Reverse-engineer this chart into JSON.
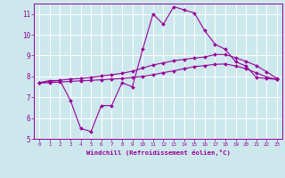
{
  "xlabel": "Windchill (Refroidissement éolien,°C)",
  "background_color": "#cce8ed",
  "grid_color": "#ffffff",
  "line_color": "#990099",
  "spine_color": "#7700aa",
  "xlim": [
    -0.5,
    23.5
  ],
  "ylim": [
    5,
    11.5
  ],
  "yticks": [
    5,
    6,
    7,
    8,
    9,
    10,
    11
  ],
  "xticks": [
    0,
    1,
    2,
    3,
    4,
    5,
    6,
    7,
    8,
    9,
    10,
    11,
    12,
    13,
    14,
    15,
    16,
    17,
    18,
    19,
    20,
    21,
    22,
    23
  ],
  "line1_x": [
    0,
    1,
    2,
    3,
    4,
    5,
    6,
    7,
    8,
    9,
    10,
    11,
    12,
    13,
    14,
    15,
    16,
    17,
    18,
    19,
    20,
    21,
    22,
    23
  ],
  "line1_y": [
    7.7,
    7.8,
    7.8,
    6.85,
    5.5,
    5.35,
    6.6,
    6.6,
    7.7,
    7.5,
    9.3,
    11.0,
    10.5,
    11.35,
    11.2,
    11.05,
    10.2,
    9.55,
    9.3,
    8.7,
    8.5,
    7.95,
    7.9,
    7.85
  ],
  "line2_x": [
    0,
    1,
    2,
    3,
    4,
    5,
    6,
    7,
    8,
    9,
    10,
    11,
    12,
    13,
    14,
    15,
    16,
    17,
    18,
    19,
    20,
    21,
    22,
    23
  ],
  "line2_y": [
    7.7,
    7.75,
    7.82,
    7.87,
    7.9,
    7.95,
    8.02,
    8.08,
    8.15,
    8.25,
    8.4,
    8.55,
    8.65,
    8.75,
    8.82,
    8.88,
    8.93,
    9.05,
    9.05,
    8.9,
    8.72,
    8.52,
    8.22,
    7.9
  ],
  "line3_x": [
    0,
    1,
    2,
    3,
    4,
    5,
    6,
    7,
    8,
    9,
    10,
    11,
    12,
    13,
    14,
    15,
    16,
    17,
    18,
    19,
    20,
    21,
    22,
    23
  ],
  "line3_y": [
    7.68,
    7.7,
    7.73,
    7.76,
    7.79,
    7.81,
    7.84,
    7.87,
    7.9,
    7.95,
    8.0,
    8.08,
    8.18,
    8.27,
    8.37,
    8.47,
    8.52,
    8.58,
    8.6,
    8.5,
    8.37,
    8.17,
    7.97,
    7.87
  ]
}
